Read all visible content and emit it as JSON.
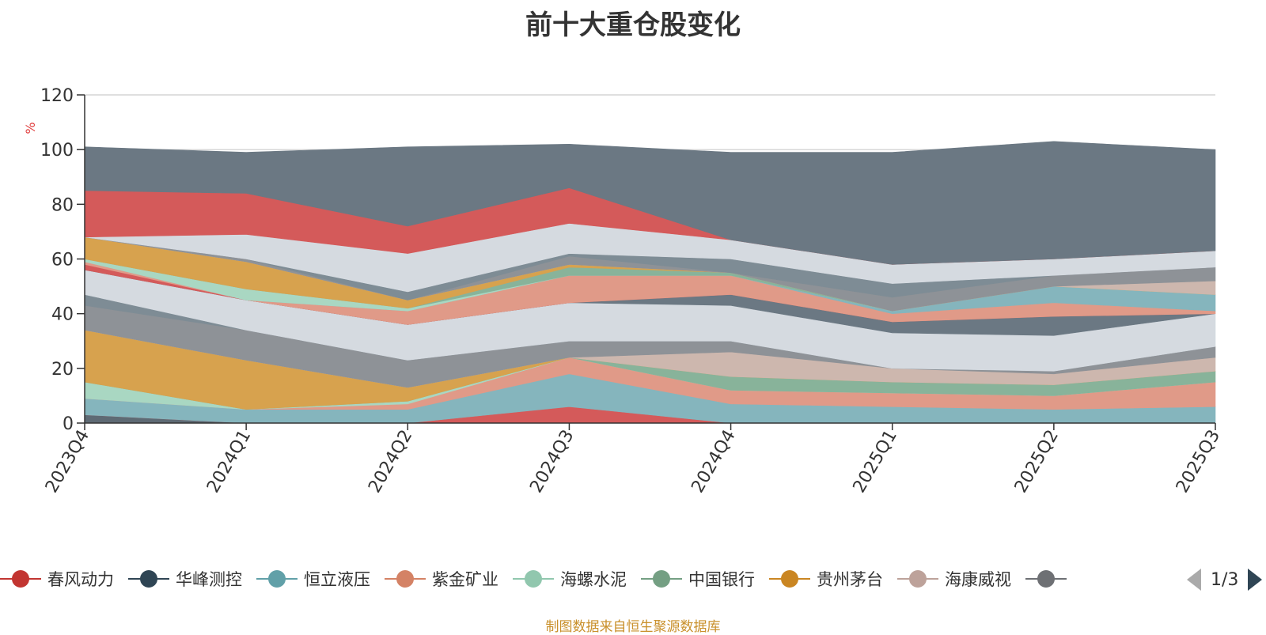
{
  "chart_data": {
    "type": "area",
    "stacked": true,
    "title": "前十大重仓股变化",
    "ylabel": "%",
    "ylim": [
      0,
      120
    ],
    "yticks": [
      0,
      20,
      40,
      60,
      80,
      100,
      120
    ],
    "grid": true,
    "categories": [
      "2023Q4",
      "2024Q1",
      "2024Q2",
      "2024Q3",
      "2024Q4",
      "2025Q1",
      "2025Q2",
      "2025Q3"
    ],
    "series": [
      {
        "name": "",
        "color": "#5e6a74",
        "values": [
          3,
          0,
          0,
          0,
          0,
          0,
          0,
          0
        ]
      },
      {
        "name": "",
        "color": "#d45a5a",
        "values": [
          0,
          0,
          0,
          6,
          0,
          0,
          0,
          0
        ]
      },
      {
        "name": "",
        "color": "#85b5bd",
        "values": [
          6,
          5,
          5,
          12,
          7,
          6,
          5,
          6
        ]
      },
      {
        "name": "",
        "color": "#e09a88",
        "values": [
          0,
          0,
          2,
          6,
          5,
          5,
          5,
          9
        ]
      },
      {
        "name": "",
        "color": "#a9d7c2",
        "values": [
          6,
          0,
          1,
          0,
          0,
          0,
          0,
          0
        ]
      },
      {
        "name": "",
        "color": "#88b39a",
        "values": [
          0,
          0,
          0,
          0,
          5,
          4,
          4,
          4
        ]
      },
      {
        "name": "",
        "color": "#d7a24e",
        "values": [
          19,
          18,
          5,
          0,
          0,
          0,
          0,
          0
        ]
      },
      {
        "name": "",
        "color": "#cdb7ae",
        "values": [
          0,
          0,
          0,
          0,
          9,
          5,
          4,
          5
        ]
      },
      {
        "name": "",
        "color": "#8e9297",
        "values": [
          9,
          11,
          10,
          6,
          4,
          0,
          1,
          4
        ]
      },
      {
        "name": "",
        "color": "#7e8c95",
        "values": [
          4,
          0,
          0,
          0,
          0,
          0,
          0,
          0
        ]
      },
      {
        "name": "",
        "color": "#d5dae0",
        "values": [
          9,
          11,
          13,
          14,
          13,
          13,
          13,
          12
        ]
      },
      {
        "name": "",
        "color": "#6b7883",
        "values": [
          0,
          0,
          0,
          0,
          4,
          4,
          7,
          0
        ]
      },
      {
        "name": "",
        "color": "#d45a5a",
        "values": [
          2,
          0,
          0,
          0,
          0,
          0,
          0,
          0
        ]
      },
      {
        "name": "",
        "color": "#e09a88",
        "values": [
          1,
          0,
          5,
          10,
          7,
          3,
          5,
          1
        ]
      },
      {
        "name": "",
        "color": "#85b5bd",
        "values": [
          0,
          0,
          0,
          0,
          0,
          1,
          6,
          6
        ]
      },
      {
        "name": "",
        "color": "#a9d7c2",
        "values": [
          1,
          4,
          1,
          0,
          0,
          0,
          0,
          0
        ]
      },
      {
        "name": "",
        "color": "#88b39a",
        "values": [
          0,
          0,
          0,
          3,
          1,
          0,
          0,
          0
        ]
      },
      {
        "name": "",
        "color": "#d7a24e",
        "values": [
          8,
          10,
          3,
          1,
          0,
          0,
          0,
          0
        ]
      },
      {
        "name": "",
        "color": "#cdb7ae",
        "values": [
          0,
          0,
          0,
          0,
          0,
          0,
          0,
          5
        ]
      },
      {
        "name": "",
        "color": "#8e9297",
        "values": [
          0,
          1,
          0,
          3,
          0,
          5,
          4,
          5
        ]
      },
      {
        "name": "",
        "color": "#7e8c95",
        "values": [
          0,
          0,
          3,
          1,
          5,
          5,
          0,
          0
        ]
      },
      {
        "name": "",
        "color": "#d5dae0",
        "values": [
          0,
          9,
          14,
          11,
          7,
          7,
          6,
          6
        ]
      },
      {
        "name": "",
        "color": "#d45a5a",
        "values": [
          17,
          15,
          10,
          13,
          0,
          0,
          0,
          0
        ]
      },
      {
        "name": "",
        "color": "#6b7883",
        "values": [
          16,
          15,
          29,
          16,
          32,
          41,
          43,
          37
        ]
      }
    ],
    "legend": {
      "placement": "bottom",
      "entries": [
        {
          "name": "春风动力",
          "color": "#c23531"
        },
        {
          "name": "华峰测控",
          "color": "#2f4554"
        },
        {
          "name": "恒立液压",
          "color": "#61a0a8"
        },
        {
          "name": "紫金矿业",
          "color": "#d48265"
        },
        {
          "name": "海螺水泥",
          "color": "#91c7ae"
        },
        {
          "name": "中国银行",
          "color": "#749f83"
        },
        {
          "name": "贵州茅台",
          "color": "#ca8622"
        },
        {
          "name": "海康威视",
          "color": "#bda29a"
        },
        {
          "name": "",
          "color": "#6e7074"
        }
      ],
      "partial_last_label": "",
      "page": "1/3"
    }
  },
  "footer": "制图数据来自恒生聚源数据库"
}
